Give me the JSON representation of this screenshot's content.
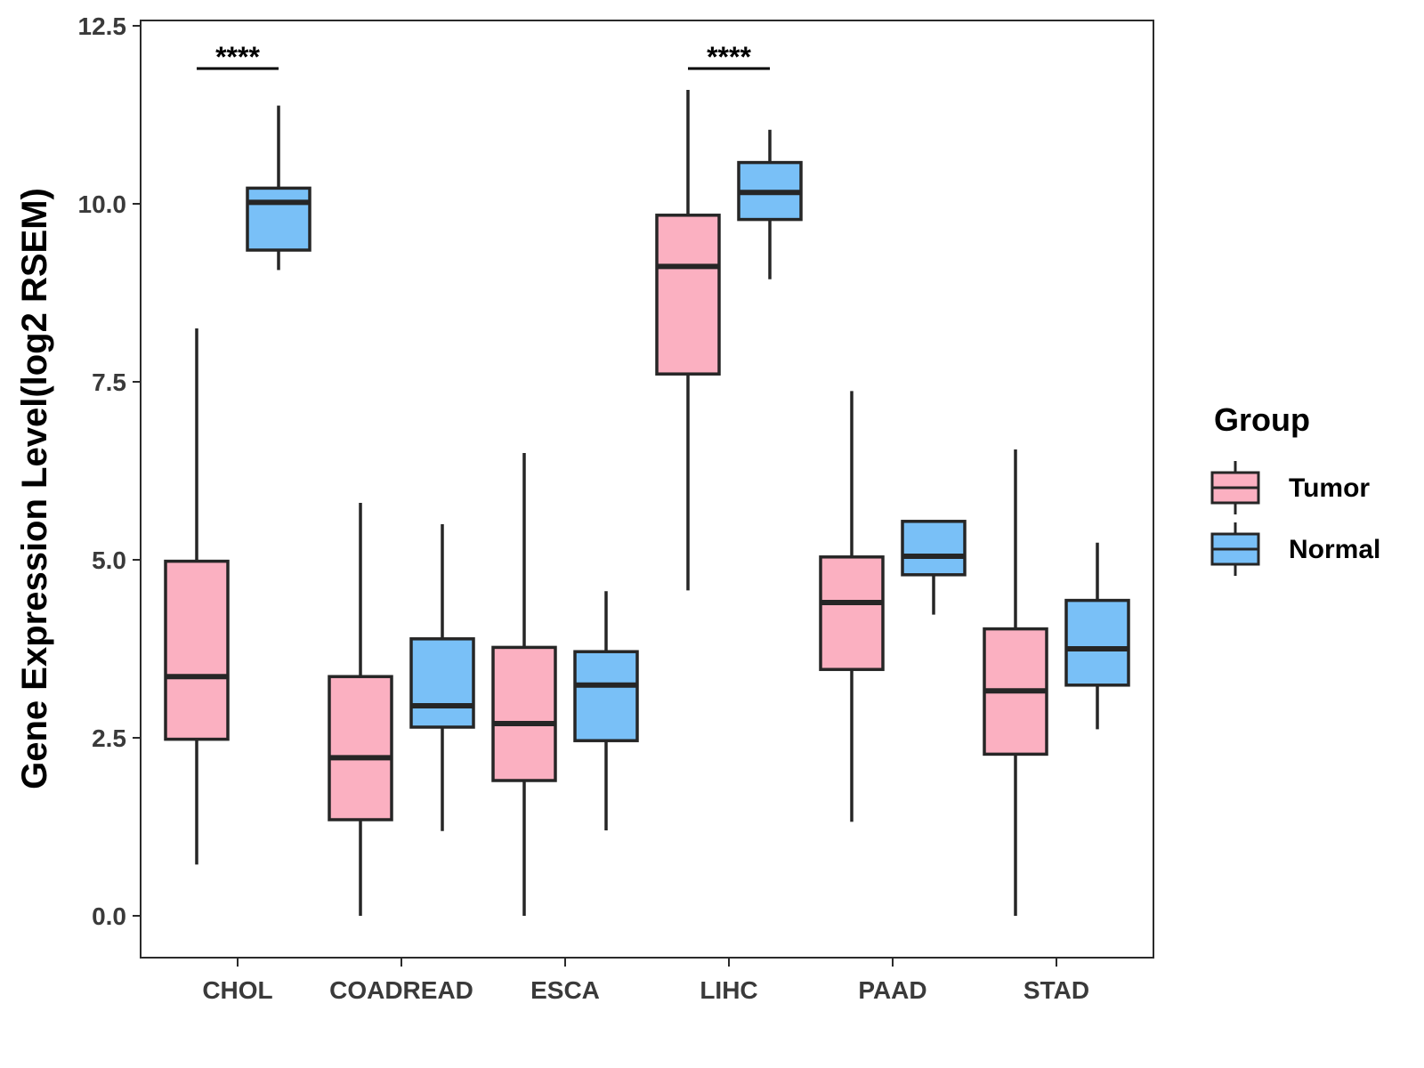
{
  "chart_data": {
    "type": "boxplot",
    "title": "",
    "xlabel": "",
    "ylabel": "Gene Expression Level(log2 RSEM)",
    "ylim": [
      -0.3,
      12.6
    ],
    "yticks": [
      "0.0",
      "2.5",
      "5.0",
      "7.5",
      "10.0",
      "12.5"
    ],
    "ytick_values": [
      0,
      2.5,
      5,
      7.5,
      10,
      12.5
    ],
    "categories": [
      "CHOL",
      "COADREAD",
      "ESCA",
      "LIHC",
      "PAAD",
      "STAD"
    ],
    "legend": {
      "title": "Group",
      "position": "right",
      "entries": [
        "Tumor",
        "Normal"
      ]
    },
    "colors": {
      "Tumor": "#fbb0c1",
      "Normal": "#79c0f7",
      "outline": "#262626"
    },
    "series": [
      {
        "name": "Tumor",
        "boxes": [
          {
            "category": "CHOL",
            "lower_whisker": 0.72,
            "q1": 2.48,
            "median": 3.36,
            "q3": 4.98,
            "upper_whisker": 8.25
          },
          {
            "category": "COADREAD",
            "lower_whisker": 0.0,
            "q1": 1.35,
            "median": 2.22,
            "q3": 3.36,
            "upper_whisker": 5.8
          },
          {
            "category": "ESCA",
            "lower_whisker": 0.0,
            "q1": 1.9,
            "median": 2.7,
            "q3": 3.77,
            "upper_whisker": 6.5
          },
          {
            "category": "LIHC",
            "lower_whisker": 4.57,
            "q1": 7.61,
            "median": 9.12,
            "q3": 9.84,
            "upper_whisker": 11.6
          },
          {
            "category": "PAAD",
            "lower_whisker": 1.32,
            "q1": 3.46,
            "median": 4.4,
            "q3": 5.04,
            "upper_whisker": 7.37
          },
          {
            "category": "STAD",
            "lower_whisker": 0.0,
            "q1": 2.27,
            "median": 3.16,
            "q3": 4.03,
            "upper_whisker": 6.55
          }
        ]
      },
      {
        "name": "Normal",
        "boxes": [
          {
            "category": "CHOL",
            "lower_whisker": 9.07,
            "q1": 9.35,
            "median": 10.02,
            "q3": 10.22,
            "upper_whisker": 11.38
          },
          {
            "category": "COADREAD",
            "lower_whisker": 1.19,
            "q1": 2.65,
            "median": 2.95,
            "q3": 3.89,
            "upper_whisker": 5.5
          },
          {
            "category": "ESCA",
            "lower_whisker": 1.2,
            "q1": 2.46,
            "median": 3.24,
            "q3": 3.71,
            "upper_whisker": 4.56
          },
          {
            "category": "LIHC",
            "lower_whisker": 8.94,
            "q1": 9.78,
            "median": 10.16,
            "q3": 10.58,
            "upper_whisker": 11.04
          },
          {
            "category": "PAAD",
            "lower_whisker": 4.23,
            "q1": 4.79,
            "median": 5.05,
            "q3": 5.54,
            "upper_whisker": 5.54
          },
          {
            "category": "STAD",
            "lower_whisker": 2.62,
            "q1": 3.24,
            "median": 3.75,
            "q3": 4.43,
            "upper_whisker": 5.24
          }
        ]
      }
    ],
    "annotations": [
      {
        "category": "CHOL",
        "label": "****",
        "y": 11.9
      },
      {
        "category": "LIHC",
        "label": "****",
        "y": 11.9
      }
    ]
  }
}
